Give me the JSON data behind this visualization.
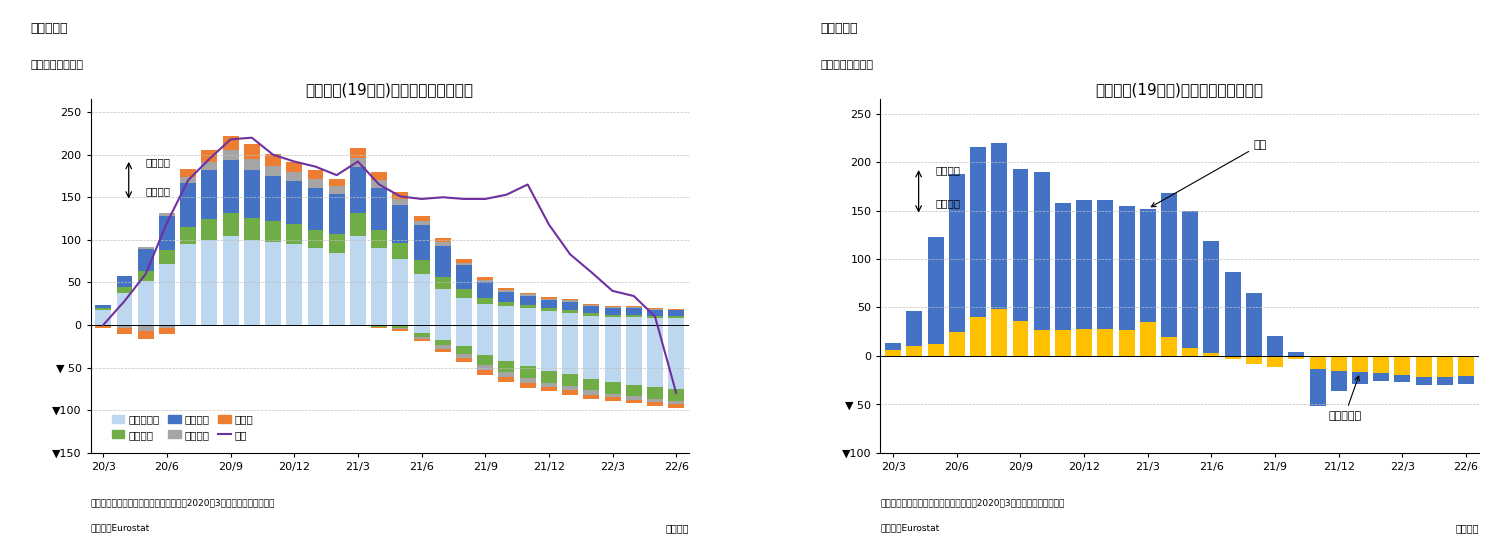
{
  "chart3": {
    "title": "ユーロ圈(19か国)の累積失業者数変化",
    "fig_label": "（図表３）",
    "ylabel": "（基準差、万人）",
    "note1": "（注）季節調整値、「コロナショック（2020年3月）」からの累積人数",
    "note2": "（資料）Eurostat",
    "note3": "（月次）",
    "ann_up": "失業者増",
    "ann_down": "失業者減",
    "legend_other": "その他の国",
    "legend_spain": "スペイン",
    "legend_italy": "イタリア",
    "legend_france": "フランス",
    "legend_germany": "ドイツ",
    "legend_total": "全体",
    "color_other": "#bdd7ee",
    "color_spain": "#70ad47",
    "color_italy": "#4472c4",
    "color_france": "#a5a5a5",
    "color_germany": "#ed7d31",
    "color_total_line": "#7030a0",
    "pos_other": [
      18,
      38,
      52,
      72,
      95,
      100,
      105,
      100,
      98,
      95,
      90,
      85,
      105,
      90,
      78,
      60,
      42,
      32,
      25,
      22,
      20,
      16,
      14,
      11,
      9,
      9,
      8,
      8
    ],
    "pos_spain": [
      2,
      7,
      11,
      16,
      20,
      24,
      27,
      26,
      24,
      23,
      22,
      22,
      27,
      22,
      18,
      16,
      14,
      10,
      7,
      5,
      4,
      4,
      4,
      3,
      3,
      3,
      3,
      2
    ],
    "pos_italy": [
      4,
      13,
      26,
      40,
      52,
      58,
      62,
      56,
      53,
      51,
      49,
      47,
      53,
      49,
      45,
      41,
      37,
      28,
      18,
      12,
      10,
      9,
      9,
      8,
      8,
      8,
      7,
      7
    ],
    "pos_france": [
      0,
      0,
      2,
      4,
      7,
      9,
      11,
      13,
      12,
      11,
      10,
      9,
      11,
      9,
      7,
      5,
      4,
      3,
      3,
      2,
      2,
      2,
      2,
      2,
      1,
      1,
      1,
      1
    ],
    "pos_germany": [
      0,
      0,
      0,
      0,
      9,
      14,
      17,
      17,
      14,
      12,
      11,
      9,
      12,
      10,
      8,
      6,
      5,
      4,
      3,
      2,
      2,
      2,
      2,
      1,
      1,
      1,
      1,
      1
    ],
    "neg_other": [
      0,
      0,
      0,
      0,
      0,
      0,
      0,
      0,
      0,
      0,
      0,
      0,
      0,
      0,
      0,
      -10,
      -18,
      -25,
      -35,
      -42,
      -48,
      -54,
      -58,
      -63,
      -67,
      -70,
      -73,
      -75
    ],
    "neg_spain": [
      0,
      0,
      0,
      0,
      0,
      0,
      0,
      0,
      0,
      0,
      0,
      0,
      0,
      -2,
      -3,
      -4,
      -6,
      -9,
      -12,
      -13,
      -14,
      -14,
      -14,
      -14,
      -14,
      -14,
      -14,
      -14
    ],
    "neg_italy": [
      0,
      0,
      0,
      0,
      0,
      0,
      0,
      0,
      0,
      0,
      0,
      0,
      0,
      0,
      0,
      0,
      0,
      0,
      0,
      0,
      0,
      0,
      0,
      0,
      0,
      0,
      0,
      0
    ],
    "neg_france": [
      -1,
      -4,
      -7,
      -4,
      0,
      0,
      0,
      0,
      0,
      0,
      0,
      0,
      0,
      0,
      -2,
      -2,
      -4,
      -5,
      -6,
      -6,
      -6,
      -5,
      -5,
      -5,
      -4,
      -4,
      -4,
      -4
    ],
    "neg_germany": [
      -3,
      -7,
      -9,
      -7,
      0,
      0,
      0,
      0,
      0,
      0,
      0,
      0,
      0,
      -2,
      -2,
      -3,
      -4,
      -5,
      -6,
      -6,
      -6,
      -5,
      -5,
      -5,
      -4,
      -4,
      -4,
      -4
    ],
    "total_line": [
      0,
      28,
      60,
      120,
      170,
      195,
      218,
      220,
      200,
      192,
      186,
      176,
      192,
      165,
      151,
      148,
      150,
      148,
      148,
      153,
      165,
      118,
      83,
      62,
      40,
      34,
      10,
      -80
    ],
    "xtick_pos": [
      0,
      3,
      6,
      9,
      12,
      15,
      18,
      21,
      24,
      27
    ],
    "xtick_labels": [
      "20/3",
      "20/6",
      "20/9",
      "20/12",
      "21/3",
      "21/6",
      "21/9",
      "21/12",
      "22/3",
      "22/6"
    ],
    "yticks": [
      -150,
      -100,
      -50,
      0,
      50,
      100,
      150,
      200,
      250
    ],
    "ytick_labels": [
      "▼150",
      "▼100",
      "▼ 50",
      "0",
      "50",
      "100",
      "150",
      "200",
      "250"
    ],
    "ylim": [
      -150,
      265
    ],
    "n_bars": 28
  },
  "chart4": {
    "title": "ユーロ圈(19か国)の累積失業者数変化",
    "fig_label": "（図表４）",
    "ylabel": "（基準差、万人）",
    "note1": "（注）季節調整値、「コロナショック（2020年3月）」からの累積人数",
    "note2": "（資料）Eurostat",
    "note3": "（月次）",
    "ann_up": "失業者増",
    "ann_down": "失業者減",
    "ann_total": "全体",
    "ann_young": "うち若年層",
    "color_total": "#4472c4",
    "color_young": "#ffc000",
    "total_bars": [
      13,
      46,
      123,
      188,
      216,
      220,
      193,
      190,
      158,
      161,
      161,
      155,
      152,
      168,
      150,
      119,
      87,
      65,
      21,
      4,
      -52,
      -36,
      -29,
      -26,
      -27,
      -30,
      -30,
      -29
    ],
    "young_bars": [
      6,
      10,
      12,
      25,
      40,
      48,
      36,
      27,
      27,
      28,
      28,
      27,
      35,
      19,
      8,
      3,
      -3,
      -8,
      -12,
      -3,
      -14,
      -16,
      -17,
      -18,
      -20,
      -22,
      -22,
      -21
    ],
    "xtick_pos": [
      0,
      3,
      6,
      9,
      12,
      15,
      18,
      21,
      24,
      27
    ],
    "xtick_labels": [
      "20/3",
      "20/6",
      "20/9",
      "20/12",
      "21/3",
      "21/6",
      "21/9",
      "21/12",
      "22/3",
      "22/6"
    ],
    "yticks": [
      -100,
      -50,
      0,
      50,
      100,
      150,
      200,
      250
    ],
    "ytick_labels": [
      "▼100",
      "▼ 50",
      "0",
      "50",
      "100",
      "150",
      "200",
      "250"
    ],
    "ylim": [
      -100,
      265
    ],
    "n_bars": 28
  },
  "bg": "#ffffff",
  "grid_color": "#c0c0c0"
}
